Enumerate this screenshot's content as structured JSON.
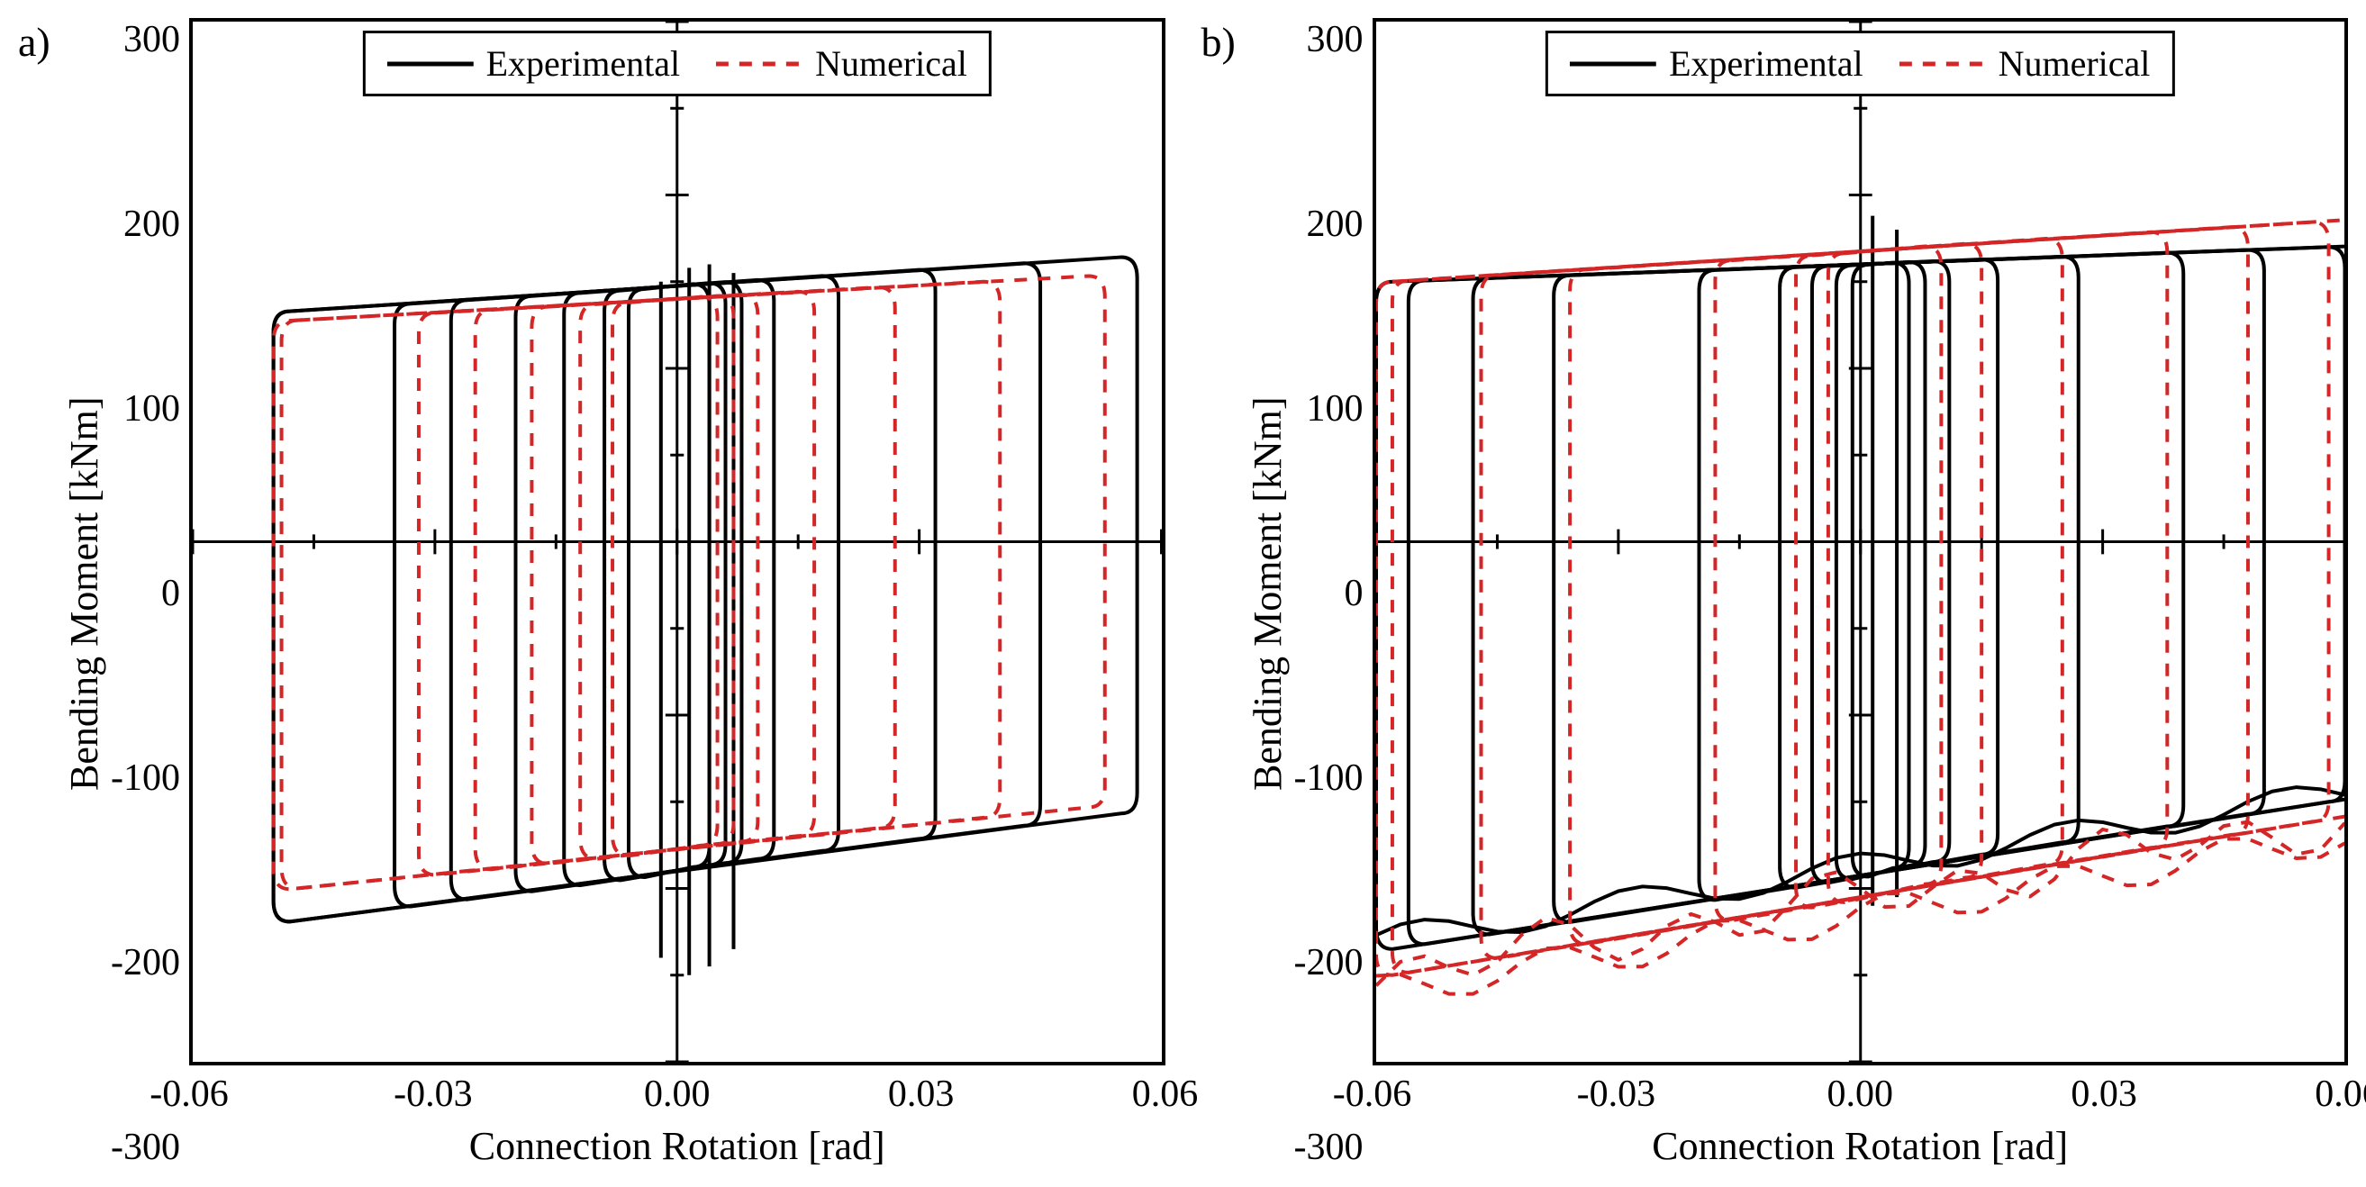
{
  "figure": {
    "background_color": "#ffffff",
    "font_family": "Times New Roman",
    "axis_label_fontsize": 44,
    "tick_fontsize": 42,
    "panel_label_fontsize": 46,
    "legend_fontsize": 40,
    "border_width": 4,
    "colors": {
      "experimental": "#000000",
      "numerical": "#d42626",
      "axis": "#000000"
    },
    "line_widths": {
      "experimental": 4,
      "numerical": 4
    },
    "dash": {
      "experimental": "none",
      "numerical": "14 12"
    },
    "xlabel": "Connection Rotation [rad]",
    "ylabel": "Bending Moment [kNm]",
    "xlim": [
      -0.06,
      0.06
    ],
    "ylim": [
      -300,
      300
    ],
    "xticks": [
      -0.06,
      -0.03,
      0.0,
      0.03,
      0.06
    ],
    "xtick_labels": [
      "-0.06",
      "-0.03",
      "0.00",
      "0.03",
      "0.06"
    ],
    "yticks": [
      -300,
      -200,
      -100,
      0,
      100,
      200,
      300
    ],
    "ytick_labels": [
      "-300",
      "-200",
      "-100",
      "0",
      "100",
      "200",
      "300"
    ],
    "minor_xticks": [
      -0.045,
      -0.015,
      0.015,
      0.045
    ],
    "minor_yticks": [
      -250,
      -150,
      -50,
      50,
      150,
      250
    ],
    "legend": {
      "items": [
        {
          "label": "Experimental",
          "color": "#000000",
          "dash": "none"
        },
        {
          "label": "Numerical",
          "color": "#d42626",
          "dash": "14 12"
        }
      ]
    },
    "panels": [
      {
        "label": "a)",
        "series": {
          "experimental": {
            "top_y_at_xmin": 130,
            "top_y_at_xmax": 165,
            "bot_y_at_xmin": -225,
            "bot_y_at_xmax": -155,
            "loops": [
              {
                "xmin": -0.05,
                "xmax": 0.057
              },
              {
                "xmin": -0.05,
                "xmax": 0.045
              },
              {
                "xmin": -0.035,
                "xmax": 0.032
              },
              {
                "xmin": -0.028,
                "xmax": 0.02
              },
              {
                "xmin": -0.02,
                "xmax": 0.012
              },
              {
                "xmin": -0.014,
                "xmax": 0.008
              },
              {
                "xmin": -0.009,
                "xmax": 0.006
              },
              {
                "xmin": -0.006,
                "xmax": 0.004
              }
            ],
            "center_spikes": [
              {
                "x": 0.0015,
                "ymin": -250,
                "ymax": 158
              },
              {
                "x": 0.004,
                "ymin": -245,
                "ymax": 160
              },
              {
                "x": -0.002,
                "ymin": -240,
                "ymax": 150
              },
              {
                "x": 0.007,
                "ymin": -235,
                "ymax": 155
              }
            ]
          },
          "numerical": {
            "top_y_at_xmin": 125,
            "top_y_at_xmax": 155,
            "bot_y_at_xmin": -205,
            "bot_y_at_xmax": -150,
            "loops": [
              {
                "xmin": -0.05,
                "xmax": 0.053
              },
              {
                "xmin": -0.049,
                "xmax": 0.04
              },
              {
                "xmin": -0.032,
                "xmax": 0.027
              },
              {
                "xmin": -0.025,
                "xmax": 0.017
              },
              {
                "xmin": -0.018,
                "xmax": 0.01
              },
              {
                "xmin": -0.012,
                "xmax": 0.007
              },
              {
                "xmin": -0.008,
                "xmax": 0.005
              }
            ],
            "center_spikes": []
          }
        }
      },
      {
        "label": "b)",
        "series": {
          "experimental": {
            "top_y_at_xmin": 150,
            "top_y_at_xmax": 170,
            "bot_y_at_xmin": -235,
            "bot_y_at_xmax": -150,
            "loops": [
              {
                "xmin": -0.06,
                "xmax": 0.064
              },
              {
                "xmin": -0.056,
                "xmax": 0.06
              },
              {
                "xmin": -0.048,
                "xmax": 0.05
              },
              {
                "xmin": -0.038,
                "xmax": 0.04
              },
              {
                "xmin": -0.02,
                "xmax": 0.027
              },
              {
                "xmin": -0.01,
                "xmax": 0.017
              },
              {
                "xmin": -0.006,
                "xmax": 0.011
              },
              {
                "xmin": -0.003,
                "xmax": 0.008
              },
              {
                "xmin": -0.001,
                "xmax": 0.006
              }
            ],
            "center_spikes": [
              {
                "x": 0.0015,
                "ymin": -210,
                "ymax": 188
              },
              {
                "x": 0.0045,
                "ymin": -205,
                "ymax": 180
              }
            ]
          },
          "numerical": {
            "top_y_at_xmin": 150,
            "top_y_at_xmax": 185,
            "bot_y_at_xmin": -250,
            "bot_y_at_xmax": -160,
            "loops": [
              {
                "xmin": -0.06,
                "xmax": 0.062
              },
              {
                "xmin": -0.058,
                "xmax": 0.058
              },
              {
                "xmin": -0.047,
                "xmax": 0.048
              },
              {
                "xmin": -0.036,
                "xmax": 0.038
              },
              {
                "xmin": -0.018,
                "xmax": 0.025
              },
              {
                "xmin": -0.008,
                "xmax": 0.015
              },
              {
                "xmin": -0.004,
                "xmax": 0.01
              }
            ],
            "center_spikes": []
          }
        },
        "bottom_wavy": true
      }
    ]
  }
}
